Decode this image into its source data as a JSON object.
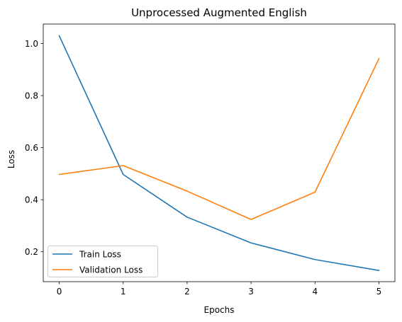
{
  "chart_data": {
    "type": "line",
    "title": "Unprocessed Augmented English",
    "xlabel": "Epochs",
    "ylabel": "Loss",
    "x": [
      0,
      1,
      2,
      3,
      4,
      5
    ],
    "xticks": [
      "0",
      "1",
      "2",
      "3",
      "4",
      "5"
    ],
    "yticks": [
      "0.2",
      "0.4",
      "0.6",
      "0.8",
      "1.0"
    ],
    "xlim": [
      -0.25,
      5.25
    ],
    "ylim": [
      0.085,
      1.075
    ],
    "grid": false,
    "legend_position": "lower-left",
    "series": [
      {
        "name": "Train Loss",
        "color": "#1f77b4",
        "values": [
          1.03,
          0.497,
          0.333,
          0.234,
          0.17,
          0.128
        ]
      },
      {
        "name": "Validation Loss",
        "color": "#ff7f0e",
        "values": [
          0.497,
          0.531,
          0.433,
          0.324,
          0.429,
          0.942
        ]
      }
    ]
  }
}
